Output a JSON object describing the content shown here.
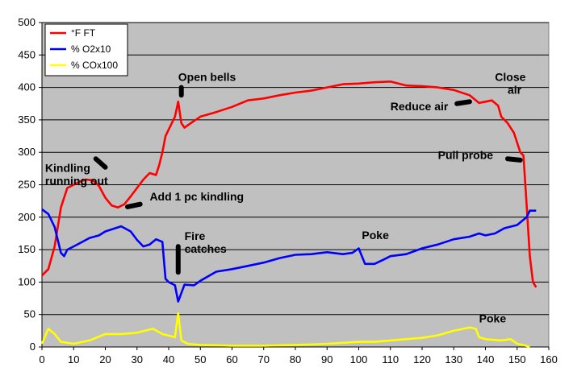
{
  "chart_data": {
    "type": "line",
    "xlim": [
      0,
      160
    ],
    "ylim": [
      0,
      500
    ],
    "x_ticks": [
      "0",
      "10",
      "20",
      "30",
      "40",
      "50",
      "60",
      "70",
      "80",
      "90",
      "100",
      "110",
      "120",
      "130",
      "140",
      "150",
      "160"
    ],
    "y_ticks": [
      "0",
      "50",
      "100",
      "150",
      "200",
      "250",
      "300",
      "350",
      "400",
      "450",
      "500"
    ],
    "grid": "horizontal",
    "plot_background": "#c0c0c0",
    "legend_position": "top-left",
    "series": [
      {
        "name": "°F FT",
        "color": "#ff0000",
        "points": [
          [
            0,
            110
          ],
          [
            2,
            120
          ],
          [
            4,
            155
          ],
          [
            6,
            215
          ],
          [
            8,
            245
          ],
          [
            10,
            250
          ],
          [
            12,
            255
          ],
          [
            14,
            258
          ],
          [
            16,
            257
          ],
          [
            18,
            248
          ],
          [
            20,
            230
          ],
          [
            22,
            218
          ],
          [
            24,
            215
          ],
          [
            26,
            220
          ],
          [
            28,
            232
          ],
          [
            30,
            245
          ],
          [
            32,
            258
          ],
          [
            34,
            268
          ],
          [
            36,
            265
          ],
          [
            37,
            280
          ],
          [
            38,
            300
          ],
          [
            39,
            325
          ],
          [
            40,
            335
          ],
          [
            41,
            345
          ],
          [
            42,
            355
          ],
          [
            43,
            378
          ],
          [
            44,
            345
          ],
          [
            45,
            338
          ],
          [
            47,
            345
          ],
          [
            50,
            355
          ],
          [
            55,
            362
          ],
          [
            60,
            370
          ],
          [
            65,
            380
          ],
          [
            70,
            383
          ],
          [
            75,
            388
          ],
          [
            80,
            392
          ],
          [
            85,
            395
          ],
          [
            90,
            400
          ],
          [
            95,
            405
          ],
          [
            100,
            406
          ],
          [
            105,
            408
          ],
          [
            110,
            409
          ],
          [
            115,
            403
          ],
          [
            120,
            402
          ],
          [
            125,
            400
          ],
          [
            130,
            396
          ],
          [
            135,
            388
          ],
          [
            138,
            376
          ],
          [
            140,
            378
          ],
          [
            142,
            380
          ],
          [
            144,
            372
          ],
          [
            145,
            355
          ],
          [
            147,
            345
          ],
          [
            149,
            330
          ],
          [
            151,
            300
          ],
          [
            152,
            295
          ],
          [
            153,
            220
          ],
          [
            154,
            140
          ],
          [
            155,
            100
          ],
          [
            156,
            92
          ]
        ]
      },
      {
        "name": "% O2x10",
        "color": "#0000ff",
        "points": [
          [
            0,
            212
          ],
          [
            2,
            205
          ],
          [
            4,
            185
          ],
          [
            6,
            145
          ],
          [
            7,
            140
          ],
          [
            8,
            150
          ],
          [
            10,
            155
          ],
          [
            12,
            160
          ],
          [
            15,
            168
          ],
          [
            18,
            172
          ],
          [
            20,
            178
          ],
          [
            25,
            186
          ],
          [
            28,
            178
          ],
          [
            30,
            165
          ],
          [
            32,
            155
          ],
          [
            34,
            158
          ],
          [
            36,
            166
          ],
          [
            38,
            162
          ],
          [
            39,
            105
          ],
          [
            40,
            100
          ],
          [
            42,
            95
          ],
          [
            43,
            70
          ],
          [
            45,
            96
          ],
          [
            48,
            95
          ],
          [
            50,
            102
          ],
          [
            55,
            116
          ],
          [
            60,
            120
          ],
          [
            65,
            125
          ],
          [
            70,
            130
          ],
          [
            75,
            137
          ],
          [
            80,
            142
          ],
          [
            85,
            143
          ],
          [
            90,
            146
          ],
          [
            95,
            143
          ],
          [
            98,
            145
          ],
          [
            100,
            152
          ],
          [
            102,
            128
          ],
          [
            105,
            128
          ],
          [
            108,
            135
          ],
          [
            110,
            140
          ],
          [
            115,
            143
          ],
          [
            120,
            152
          ],
          [
            125,
            158
          ],
          [
            130,
            166
          ],
          [
            135,
            170
          ],
          [
            138,
            175
          ],
          [
            140,
            172
          ],
          [
            143,
            175
          ],
          [
            146,
            183
          ],
          [
            150,
            188
          ],
          [
            153,
            200
          ],
          [
            154,
            210
          ],
          [
            156,
            210
          ]
        ]
      },
      {
        "name": "% COx100",
        "color": "#ffff00",
        "points": [
          [
            0,
            5
          ],
          [
            2,
            28
          ],
          [
            4,
            20
          ],
          [
            6,
            8
          ],
          [
            10,
            5
          ],
          [
            15,
            10
          ],
          [
            20,
            20
          ],
          [
            25,
            20
          ],
          [
            30,
            22
          ],
          [
            35,
            28
          ],
          [
            38,
            20
          ],
          [
            42,
            15
          ],
          [
            43,
            52
          ],
          [
            44,
            10
          ],
          [
            46,
            5
          ],
          [
            50,
            3
          ],
          [
            60,
            2
          ],
          [
            70,
            2
          ],
          [
            80,
            3
          ],
          [
            90,
            5
          ],
          [
            100,
            8
          ],
          [
            105,
            8
          ],
          [
            110,
            10
          ],
          [
            120,
            14
          ],
          [
            125,
            18
          ],
          [
            130,
            25
          ],
          [
            135,
            30
          ],
          [
            137,
            28
          ],
          [
            138,
            15
          ],
          [
            140,
            12
          ],
          [
            145,
            10
          ],
          [
            148,
            12
          ],
          [
            150,
            5
          ],
          [
            152,
            3
          ],
          [
            154,
            0
          ]
        ]
      }
    ],
    "annotations": [
      {
        "text": "Kindling",
        "x": 1,
        "y": 270
      },
      {
        "text": "running out",
        "x": 1,
        "y": 250
      },
      {
        "text": "Open bells",
        "x": 43,
        "y": 410
      },
      {
        "text": "Add 1 pc kindling",
        "x": 34,
        "y": 226
      },
      {
        "text": "Fire",
        "x": 45,
        "y": 165
      },
      {
        "text": "catches",
        "x": 45,
        "y": 145
      },
      {
        "text": "Poke",
        "x": 101,
        "y": 166
      },
      {
        "text": "Reduce air",
        "x": 110,
        "y": 365
      },
      {
        "text": "Close",
        "x": 143,
        "y": 410
      },
      {
        "text": "air",
        "x": 147,
        "y": 390
      },
      {
        "text": "Pull probe",
        "x": 125,
        "y": 290
      },
      {
        "text": "Poke",
        "x": 138,
        "y": 38
      }
    ],
    "annotation_pointers": [
      {
        "from": [
          17,
          290
        ],
        "to": [
          20,
          277
        ]
      },
      {
        "from": [
          27,
          216
        ],
        "to": [
          31,
          220
        ]
      },
      {
        "from": [
          43,
          155
        ],
        "to": [
          43,
          115
        ]
      },
      {
        "from": [
          44,
          388
        ],
        "to": [
          44,
          400
        ]
      },
      {
        "from": [
          131,
          375
        ],
        "to": [
          135,
          378
        ]
      },
      {
        "from": [
          147,
          290
        ],
        "to": [
          151,
          288
        ]
      }
    ]
  }
}
